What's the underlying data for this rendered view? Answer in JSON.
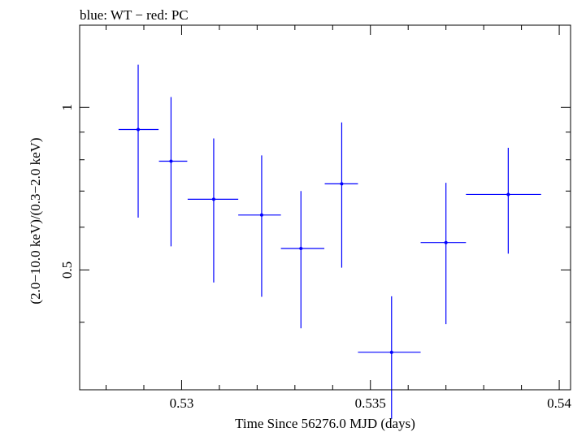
{
  "chart_data": {
    "type": "scatter",
    "title": "blue: WT − red: PC",
    "xlabel": "Time Since 56276.0 MJD (days)",
    "ylabel": "(2.0−10.0 keV)/(0.3−2.0 keV)",
    "xlim": [
      0.5273,
      0.5403
    ],
    "ylim": [
      0.3,
      1.42
    ],
    "y_scale": "log",
    "x_ticks": [
      {
        "value": 0.53,
        "label": "0.53"
      },
      {
        "value": 0.535,
        "label": "0.535"
      },
      {
        "value": 0.54,
        "label": "0.54"
      }
    ],
    "y_ticks": [
      {
        "value": 0.5,
        "label": "0.5"
      },
      {
        "value": 1.0,
        "label": "1"
      }
    ],
    "y_minor_ticks": [
      0.3,
      0.4,
      0.6,
      0.7,
      0.8,
      0.9
    ],
    "series": [
      {
        "name": "WT",
        "color": "#0000ff",
        "points": [
          {
            "x": 0.52885,
            "xlo": 0.52833,
            "xhi": 0.52939,
            "y": 0.91,
            "ylo": 0.625,
            "yhi": 1.2
          },
          {
            "x": 0.52972,
            "xlo": 0.5294,
            "xhi": 0.53015,
            "y": 0.795,
            "ylo": 0.553,
            "yhi": 1.045
          },
          {
            "x": 0.53085,
            "xlo": 0.53016,
            "xhi": 0.5315,
            "y": 0.676,
            "ylo": 0.474,
            "yhi": 0.876
          },
          {
            "x": 0.53212,
            "xlo": 0.5315,
            "xhi": 0.53263,
            "y": 0.632,
            "ylo": 0.446,
            "yhi": 0.815
          },
          {
            "x": 0.53316,
            "xlo": 0.53263,
            "xhi": 0.53378,
            "y": 0.548,
            "ylo": 0.39,
            "yhi": 0.7
          },
          {
            "x": 0.53424,
            "xlo": 0.53379,
            "xhi": 0.53467,
            "y": 0.722,
            "ylo": 0.505,
            "yhi": 0.938
          },
          {
            "x": 0.53556,
            "xlo": 0.53467,
            "xhi": 0.53633,
            "y": 0.352,
            "ylo": 0.265,
            "yhi": 0.447
          },
          {
            "x": 0.537,
            "xlo": 0.53633,
            "xhi": 0.53753,
            "y": 0.562,
            "ylo": 0.397,
            "yhi": 0.725
          },
          {
            "x": 0.53865,
            "xlo": 0.53753,
            "xhi": 0.53952,
            "y": 0.69,
            "ylo": 0.536,
            "yhi": 0.842
          }
        ]
      }
    ]
  }
}
